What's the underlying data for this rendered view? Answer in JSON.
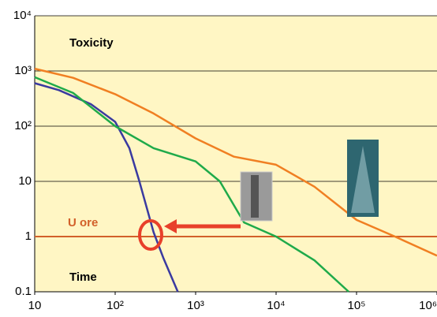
{
  "chart_data": {
    "type": "line",
    "log_x": true,
    "log_y": true,
    "xlim": [
      10,
      1000000
    ],
    "ylim": [
      0.1,
      10000
    ],
    "xticks": [
      10,
      {
        "value": 100,
        "label": "10²"
      },
      {
        "value": 1000,
        "label": "10³"
      },
      {
        "value": 10000,
        "label": "10⁴"
      },
      {
        "value": 100000,
        "label": "10⁵"
      },
      {
        "value": 1000000,
        "label": "10⁶"
      }
    ],
    "yticks": [
      0.1,
      1,
      10,
      {
        "value": 100,
        "label": "10²"
      },
      {
        "value": 1000,
        "label": "10³"
      },
      {
        "value": 10000,
        "label": "10⁴"
      }
    ],
    "grid": true,
    "y_label": "Toxicity",
    "x_label": "Time",
    "reference_line": {
      "label": "U ore",
      "value": 1,
      "color": "#d2602a"
    },
    "series": [
      {
        "color": "#3a3aa0",
        "x": [
          10,
          20,
          50,
          100,
          150,
          200,
          300,
          400,
          600
        ],
        "values": [
          600,
          450,
          250,
          120,
          40,
          10,
          1.2,
          0.4,
          0.1
        ]
      },
      {
        "color": "#1faa4a",
        "x": [
          10,
          30,
          100,
          300,
          1000,
          2000,
          4000,
          10000,
          30000,
          80000
        ],
        "values": [
          770,
          400,
          100,
          40,
          23,
          10,
          1.8,
          1,
          0.37,
          0.1
        ]
      },
      {
        "color": "#f07f22",
        "x": [
          10,
          30,
          100,
          300,
          1000,
          3000,
          10000,
          30000,
          100000,
          300000,
          1000000
        ],
        "values": [
          1100,
          750,
          380,
          170,
          60,
          28,
          20,
          8,
          2,
          1,
          0.45
        ]
      }
    ]
  }
}
